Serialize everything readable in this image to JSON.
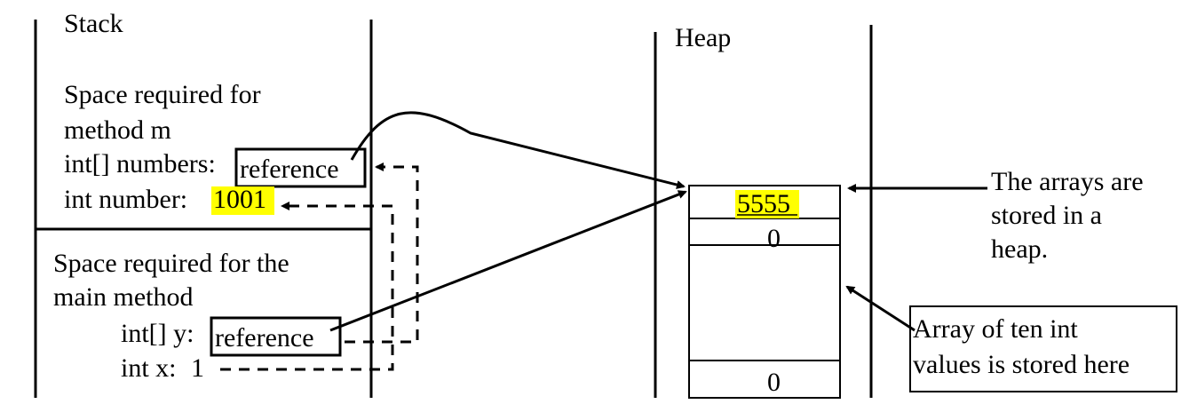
{
  "stack": {
    "title": "Stack",
    "method_m": {
      "heading_line1": "Space required for",
      "heading_line2": "method m",
      "numbers_label": "int[] numbers:",
      "numbers_value": "reference",
      "number_label": "int number:",
      "number_value": "1001"
    },
    "main": {
      "heading_line1": "Space required for the",
      "heading_line2": "main method",
      "y_label": "int[] y:",
      "y_value": "reference",
      "x_label": "int x:",
      "x_value": "1"
    }
  },
  "heap": {
    "title": "Heap",
    "cells": [
      "5555",
      "0",
      "",
      "0"
    ]
  },
  "notes": {
    "arrays_line1": "The arrays are",
    "arrays_line2": "stored in a",
    "arrays_line3": "heap.",
    "array_box_line1": "Array of ten int",
    "array_box_line2": "values is stored here"
  },
  "colors": {
    "highlight": "#ffff00",
    "ink": "#000000"
  }
}
